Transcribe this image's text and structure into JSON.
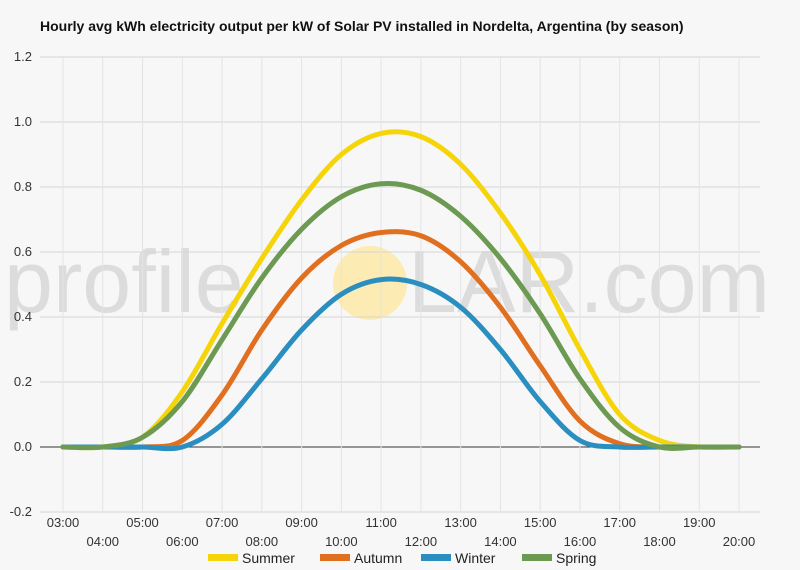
{
  "chart_data": {
    "type": "line",
    "title": "Hourly avg kWh electricity output per kW of Solar PV installed in Nordelta, Argentina (by season)",
    "xlabel": "",
    "ylabel": "",
    "ylim": [
      -0.2,
      1.2
    ],
    "yticks": [
      "-0.2",
      "0.0",
      "0.2",
      "0.4",
      "0.6",
      "0.8",
      "1.0",
      "1.2"
    ],
    "x": [
      "03:00",
      "04:00",
      "05:00",
      "06:00",
      "07:00",
      "08:00",
      "09:00",
      "10:00",
      "11:00",
      "12:00",
      "13:00",
      "14:00",
      "15:00",
      "16:00",
      "17:00",
      "18:00",
      "19:00",
      "20:00"
    ],
    "grid": true,
    "legend_position": "bottom",
    "watermark": {
      "left": "profile",
      "right": "LAR.com"
    },
    "series": [
      {
        "name": "Summer",
        "color": "#f5d50a",
        "values": [
          0.0,
          0.0,
          0.03,
          0.17,
          0.38,
          0.58,
          0.76,
          0.9,
          0.965,
          0.955,
          0.87,
          0.72,
          0.53,
          0.3,
          0.1,
          0.02,
          0.0,
          0.0
        ]
      },
      {
        "name": "Autumn",
        "color": "#e07020",
        "values": [
          0.0,
          0.0,
          0.0,
          0.02,
          0.16,
          0.36,
          0.52,
          0.62,
          0.66,
          0.65,
          0.57,
          0.43,
          0.25,
          0.08,
          0.01,
          0.0,
          0.0,
          0.0
        ]
      },
      {
        "name": "Winter",
        "color": "#2a8fc0",
        "values": [
          0.0,
          0.0,
          0.0,
          0.0,
          0.07,
          0.21,
          0.36,
          0.47,
          0.515,
          0.5,
          0.43,
          0.3,
          0.14,
          0.02,
          0.0,
          0.0,
          0.0,
          0.0
        ]
      },
      {
        "name": "Spring",
        "color": "#6d9a52",
        "values": [
          0.0,
          0.0,
          0.03,
          0.14,
          0.33,
          0.52,
          0.67,
          0.77,
          0.81,
          0.79,
          0.71,
          0.58,
          0.41,
          0.21,
          0.06,
          0.0,
          0.0,
          0.0
        ]
      }
    ]
  }
}
